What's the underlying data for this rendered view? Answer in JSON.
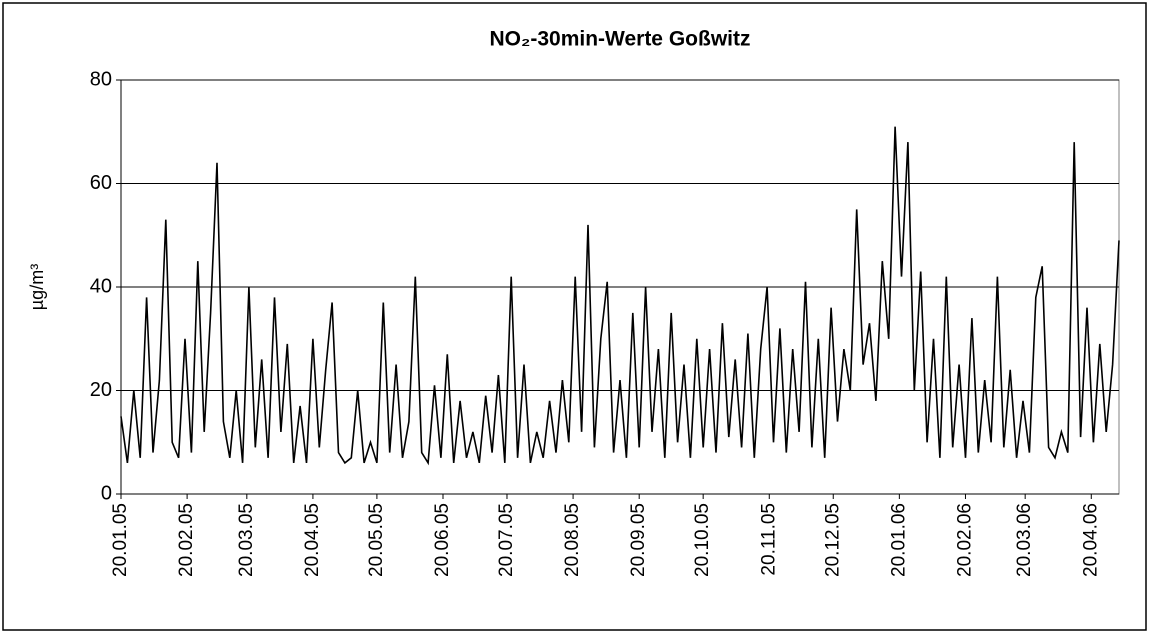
{
  "chart_data": {
    "type": "line",
    "title": "NO₂-30min-Werte Goßwitz",
    "y_label": "µg/m³",
    "x": [
      "20.01.05",
      "23.01.05",
      "26.01.05",
      "29.01.05",
      "01.02.05",
      "04.02.05",
      "07.02.05",
      "10.02.05",
      "13.02.05",
      "16.02.05",
      "19.02.05",
      "22.02.05",
      "25.02.05",
      "28.02.05",
      "03.03.05",
      "06.03.05",
      "09.03.05",
      "12.03.05",
      "15.03.05",
      "18.03.05",
      "21.03.05",
      "24.03.05",
      "27.03.05",
      "30.03.05",
      "02.04.05",
      "05.04.05",
      "08.04.05",
      "11.04.05",
      "14.04.05",
      "17.04.05",
      "20.04.05",
      "23.04.05",
      "26.04.05",
      "29.04.05",
      "02.05.05",
      "05.05.05",
      "08.05.05",
      "11.05.05",
      "14.05.05",
      "17.05.05",
      "20.05.05",
      "23.05.05",
      "26.05.05",
      "29.05.05",
      "01.06.05",
      "04.06.05",
      "07.06.05",
      "10.06.05",
      "13.06.05",
      "16.06.05",
      "19.06.05",
      "22.06.05",
      "25.06.05",
      "28.06.05",
      "01.07.05",
      "04.07.05",
      "07.07.05",
      "10.07.05",
      "13.07.05",
      "16.07.05",
      "19.07.05",
      "22.07.05",
      "25.07.05",
      "28.07.05",
      "31.07.05",
      "03.08.05",
      "06.08.05",
      "09.08.05",
      "12.08.05",
      "15.08.05",
      "18.08.05",
      "21.08.05",
      "24.08.05",
      "27.08.05",
      "30.08.05",
      "02.09.05",
      "05.09.05",
      "08.09.05",
      "11.09.05",
      "14.09.05",
      "17.09.05",
      "20.09.05",
      "23.09.05",
      "26.09.05",
      "29.09.05",
      "02.10.05",
      "05.10.05",
      "08.10.05",
      "11.10.05",
      "14.10.05",
      "17.10.05",
      "20.10.05",
      "23.10.05",
      "26.10.05",
      "29.10.05",
      "01.11.05",
      "04.11.05",
      "07.11.05",
      "10.11.05",
      "13.11.05",
      "16.11.05",
      "19.11.05",
      "22.11.05",
      "25.11.05",
      "28.11.05",
      "01.12.05",
      "04.12.05",
      "07.12.05",
      "10.12.05",
      "13.12.05",
      "16.12.05",
      "19.12.05",
      "22.12.05",
      "25.12.05",
      "28.12.05",
      "31.12.05",
      "03.01.06",
      "06.01.06",
      "09.01.06",
      "12.01.06",
      "15.01.06",
      "18.01.06",
      "21.01.06",
      "24.01.06",
      "27.01.06",
      "30.01.06",
      "02.02.06",
      "05.02.06",
      "08.02.06",
      "11.02.06",
      "14.02.06",
      "17.02.06",
      "20.02.06",
      "23.02.06",
      "26.02.06",
      "01.03.06",
      "04.03.06",
      "07.03.06",
      "10.03.06",
      "13.03.06",
      "16.03.06",
      "19.03.06",
      "22.03.06",
      "25.03.06",
      "28.03.06",
      "31.03.06",
      "03.04.06",
      "06.04.06",
      "09.04.06",
      "12.04.06",
      "15.04.06",
      "18.04.06",
      "21.04.06",
      "24.04.06",
      "27.04.06",
      "30.04.06",
      "03.05.06"
    ],
    "series": [
      {
        "name": "NO₂",
        "color": "#000000",
        "values": [
          15,
          6,
          20,
          7,
          38,
          8,
          22,
          53,
          10,
          7,
          30,
          8,
          45,
          12,
          35,
          64,
          14,
          7,
          20,
          6,
          40,
          9,
          26,
          7,
          38,
          12,
          29,
          6,
          17,
          6,
          30,
          9,
          24,
          37,
          8,
          6,
          7,
          20,
          6,
          10,
          6,
          37,
          8,
          25,
          7,
          14,
          42,
          8,
          6,
          21,
          7,
          27,
          6,
          18,
          7,
          12,
          6,
          19,
          8,
          23,
          6,
          42,
          7,
          25,
          6,
          12,
          7,
          18,
          8,
          22,
          10,
          42,
          12,
          52,
          9,
          30,
          41,
          8,
          22,
          7,
          35,
          9,
          40,
          12,
          28,
          7,
          35,
          10,
          25,
          7,
          30,
          9,
          28,
          8,
          33,
          11,
          26,
          9,
          31,
          7,
          28,
          40,
          10,
          32,
          8,
          28,
          12,
          41,
          9,
          30,
          7,
          36,
          14,
          28,
          20,
          55,
          25,
          33,
          18,
          45,
          30,
          71,
          42,
          68,
          20,
          43,
          10,
          30,
          7,
          42,
          9,
          25,
          7,
          34,
          8,
          22,
          10,
          42,
          9,
          24,
          7,
          18,
          8,
          38,
          44,
          9,
          7,
          12,
          8,
          68,
          11,
          36,
          10,
          29,
          12,
          25,
          49
        ]
      }
    ],
    "xlim": [
      "20.01.05",
      "03.05.06"
    ],
    "xticks": [
      "20.01.05",
      "20.02.05",
      "20.03.05",
      "20.04.05",
      "20.05.05",
      "20.06.05",
      "20.07.05",
      "20.08.05",
      "20.09.05",
      "20.10.05",
      "20.11.05",
      "20.12.05",
      "20.01.06",
      "20.02.06",
      "20.03.06",
      "20.04.06"
    ],
    "ylim": [
      0,
      80
    ],
    "yticks": [
      0,
      20,
      40,
      60,
      80
    ],
    "grid": true
  }
}
